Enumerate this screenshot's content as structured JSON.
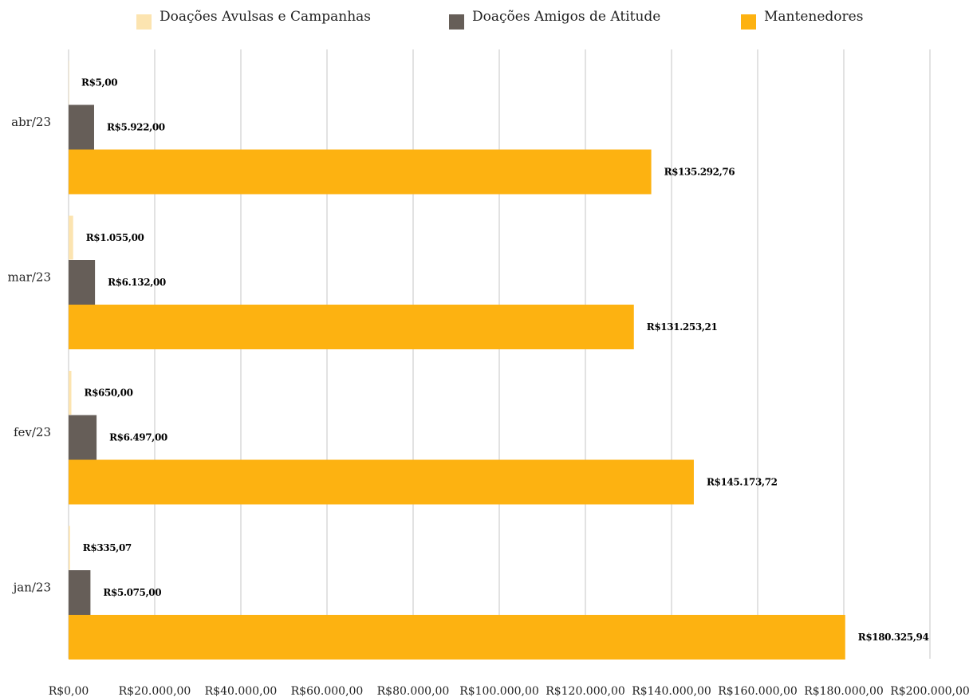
{
  "chart_data": {
    "type": "bar",
    "orientation": "horizontal",
    "categories": [
      "abr/23",
      "mar/23",
      "fev/23",
      "jan/23"
    ],
    "series": [
      {
        "name": "Doações Avulsas e Campanhas",
        "color": "#FCE4B0",
        "values": [
          5.0,
          1055.0,
          650.0,
          335.07
        ],
        "labels": [
          "R$5,00",
          "R$1.055,00",
          "R$650,00",
          "R$335,07"
        ]
      },
      {
        "name": "Doações Amigos de Atitude",
        "color": "#665E58",
        "values": [
          5922.0,
          6132.0,
          6497.0,
          5075.0
        ],
        "labels": [
          "R$5.922,00",
          "R$6.132,00",
          "R$6.497,00",
          "R$5.075,00"
        ]
      },
      {
        "name": "Mantenedores",
        "color": "#FDB211",
        "values": [
          135292.76,
          131253.21,
          145173.72,
          180325.94
        ],
        "labels": [
          "R$135.292,76",
          "R$131.253,21",
          "R$145.173,72",
          "R$180.325,94"
        ]
      }
    ],
    "xlim": [
      0,
      200000
    ],
    "x_ticks": [
      0,
      20000,
      40000,
      60000,
      80000,
      100000,
      120000,
      140000,
      160000,
      180000,
      200000
    ],
    "x_tick_labels": [
      "R$0,00",
      "R$20.000,00",
      "R$40.000,00",
      "R$60.000,00",
      "R$80.000,00",
      "R$100.000,00",
      "R$120.000,00",
      "R$140.000,00",
      "R$160.000,00",
      "R$180.000,00",
      "R$200.000,00"
    ],
    "grid": true,
    "grid_color": "#D9D9D9",
    "legend_position": "top",
    "title": "",
    "xlabel": "",
    "ylabel": ""
  }
}
